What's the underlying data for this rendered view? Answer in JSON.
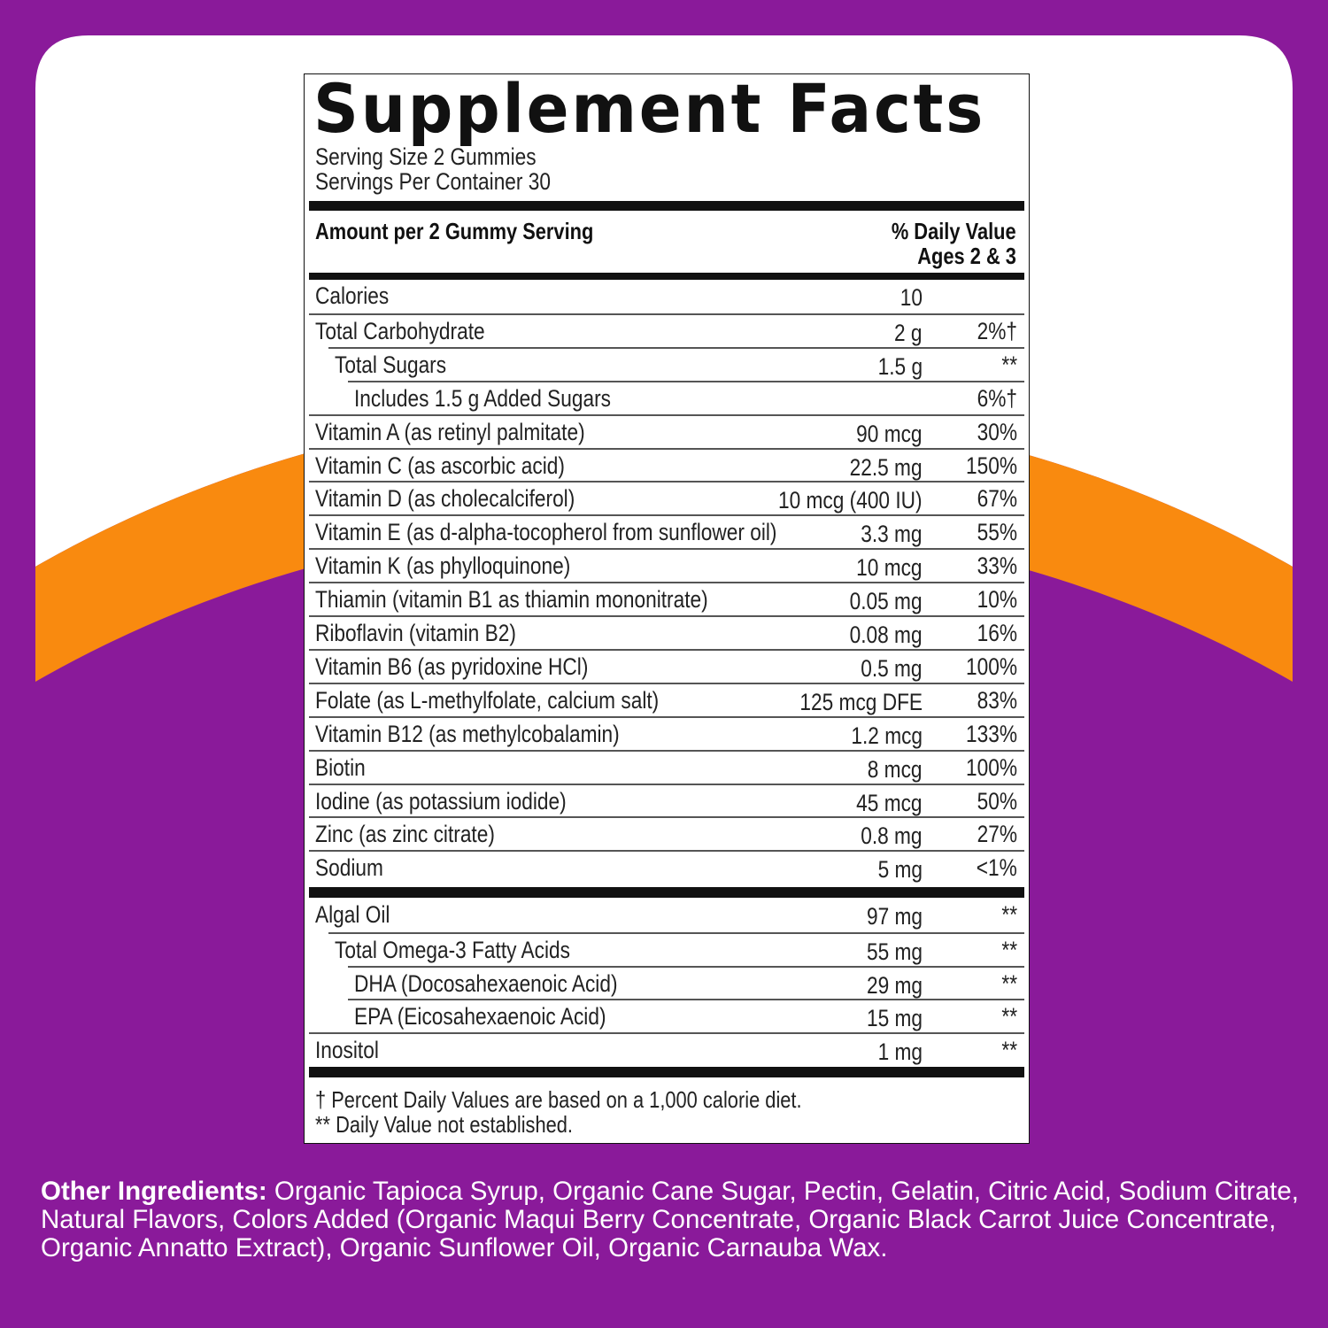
{
  "colors": {
    "background": "#8a1a9a",
    "card": "#ffffff",
    "accent_arc": "#f98a0f",
    "text": "#111111"
  },
  "title": "Supplement Facts",
  "serving_size": "Serving Size 2 Gummies",
  "servings_per_container": "Servings Per Container 30",
  "header": {
    "amount": "Amount per 2 Gummy Serving",
    "dv": "% Daily Value",
    "dv_sub": "Ages 2 & 3"
  },
  "rows": [
    {
      "name": "Calories",
      "amount": "10",
      "dv": ""
    },
    {
      "name": "Total Carbohydrate",
      "amount": "2 g",
      "dv": "2%†"
    },
    {
      "name": "Total Sugars",
      "amount": "1.5 g",
      "dv": "**"
    },
    {
      "name": "Includes 1.5 g Added Sugars",
      "amount": "",
      "dv": "6%†"
    },
    {
      "name": "Vitamin A (as retinyl palmitate)",
      "amount": "90 mcg",
      "dv": "30%"
    },
    {
      "name": "Vitamin C (as ascorbic acid)",
      "amount": "22.5 mg",
      "dv": "150%"
    },
    {
      "name": "Vitamin D (as cholecalciferol)",
      "amount": "10 mcg (400 IU)",
      "dv": "67%"
    },
    {
      "name": "Vitamin E (as d-alpha-tocopherol from sunflower oil)",
      "amount": "3.3 mg",
      "dv": "55%"
    },
    {
      "name": "Vitamin K (as phylloquinone)",
      "amount": "10 mcg",
      "dv": "33%"
    },
    {
      "name": "Thiamin (vitamin B1 as thiamin mononitrate)",
      "amount": "0.05 mg",
      "dv": "10%"
    },
    {
      "name": "Riboflavin (vitamin B2)",
      "amount": "0.08 mg",
      "dv": "16%"
    },
    {
      "name": "Vitamin B6 (as pyridoxine HCl)",
      "amount": "0.5 mg",
      "dv": "100%"
    },
    {
      "name": "Folate (as L-methylfolate, calcium salt)",
      "amount": "125 mcg DFE",
      "dv": "83%"
    },
    {
      "name": "Vitamin B12 (as methylcobalamin)",
      "amount": "1.2 mcg",
      "dv": "133%"
    },
    {
      "name": "Biotin",
      "amount": "8 mcg",
      "dv": "100%"
    },
    {
      "name": "Iodine (as potassium iodide)",
      "amount": "45 mcg",
      "dv": "50%"
    },
    {
      "name": "Zinc (as zinc citrate)",
      "amount": "0.8 mg",
      "dv": "27%"
    },
    {
      "name": "Sodium",
      "amount": "5 mg",
      "dv": "<1%"
    }
  ],
  "rows2": [
    {
      "name": "Algal Oil",
      "amount": "97 mg",
      "dv": "**"
    },
    {
      "name": "Total Omega-3 Fatty Acids",
      "amount": "55 mg",
      "dv": "**"
    },
    {
      "name": "DHA (Docosahexaenoic Acid)",
      "amount": "29 mg",
      "dv": "**"
    },
    {
      "name": "EPA (Eicosahexaenoic Acid)",
      "amount": "15 mg",
      "dv": "**"
    },
    {
      "name": "Inositol",
      "amount": "1 mg",
      "dv": "**"
    }
  ],
  "footnotes": [
    "† Percent Daily Values are based on a 1,000 calorie diet.",
    "** Daily Value not established."
  ],
  "other_ingredients": {
    "label": "Other Ingredients:",
    "text": " Organic Tapioca Syrup, Organic Cane Sugar,  Pectin, Gelatin, Citric Acid, Sodium Citrate, Natural Flavors, Colors Added (Organic Maqui Berry Concentrate, Organic Black Carrot Juice Concentrate, Organic Annatto Extract), Organic Sunflower Oil, Organic Carnauba Wax."
  }
}
